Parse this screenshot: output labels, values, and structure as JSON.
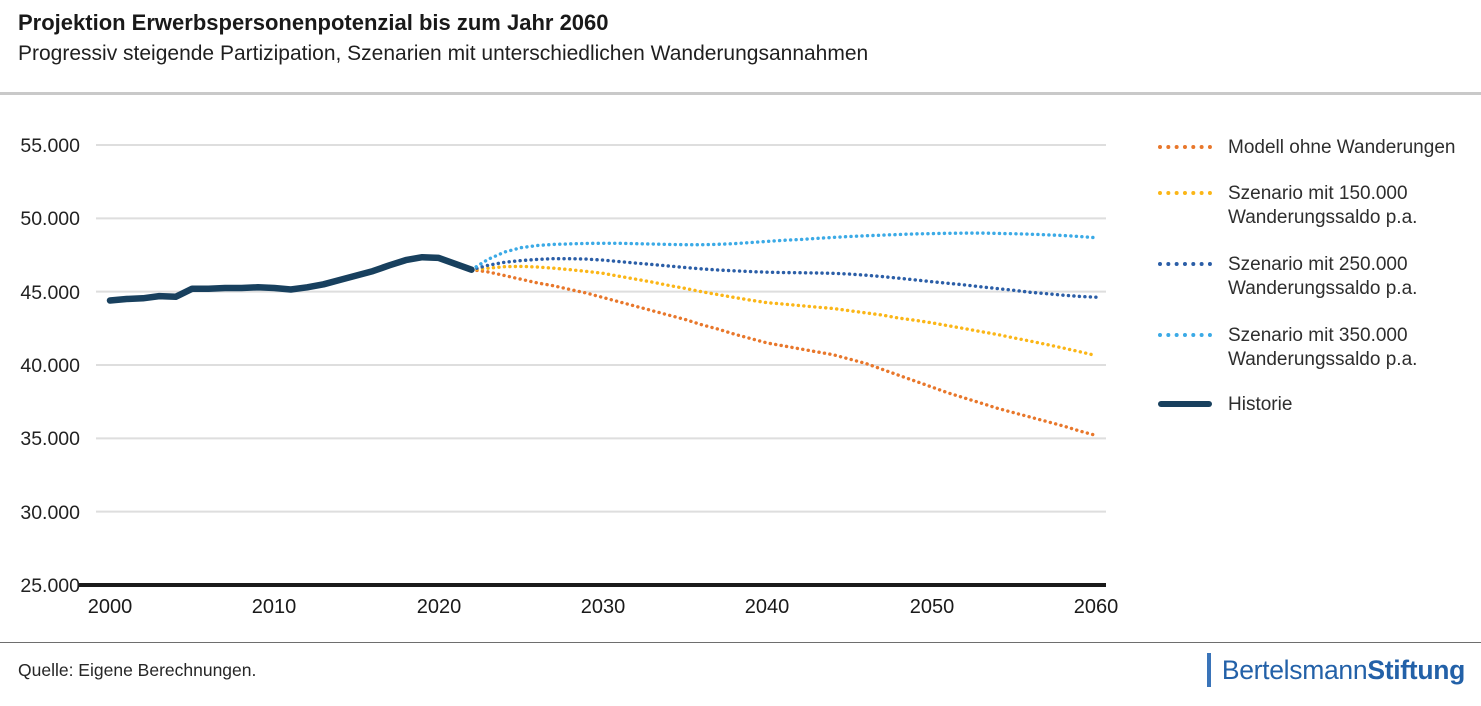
{
  "header": {
    "title": "Projektion Erwerbspersonenpotenzial bis zum Jahr 2060",
    "subtitle": "Progressiv steigende Partizipation, Szenarien mit unterschiedlichen Wanderungsannahmen"
  },
  "footer": {
    "source": "Quelle: Eigene Berechnungen.",
    "logo_part1": "Bertelsmann",
    "logo_part2": "Stiftung",
    "logo_color": "#2361a8"
  },
  "legend": {
    "position": "right",
    "items": [
      {
        "label": "Modell ohne Wanderungen",
        "color": "#E8772B",
        "style": "dotted"
      },
      {
        "label": "Szenario mit 150.000",
        "label2": "Wanderungssaldo p.a.",
        "color": "#FBB617",
        "style": "dotted"
      },
      {
        "label": "Szenario mit 250.000",
        "label2": "Wanderungssaldo p.a.",
        "color": "#2B5EA7",
        "style": "dotted"
      },
      {
        "label": "Szenario mit 350.000",
        "label2": "Wanderungssaldo p.a.",
        "color": "#3BAAE6",
        "style": "dotted"
      },
      {
        "label": "Historie",
        "color": "#18405E",
        "style": "solid"
      }
    ]
  },
  "chart_data": {
    "type": "line",
    "title": "Projektion Erwerbspersonenpotenzial bis zum Jahr 2060",
    "subtitle": "Progressiv steigende Partizipation, Szenarien mit unterschiedlichen Wanderungsannahmen",
    "xlabel": "",
    "ylabel": "",
    "grid": true,
    "legend_position": "right",
    "x_axis": {
      "range": [
        2000,
        2060
      ],
      "tick_labels": [
        "2000",
        "2010",
        "2020",
        "2030",
        "2040",
        "2050",
        "2060"
      ],
      "tick_values": [
        2000,
        2010,
        2020,
        2030,
        2040,
        2050,
        2060
      ]
    },
    "y_axis": {
      "range": [
        25000,
        55000
      ],
      "tick_labels": [
        "55.000",
        "50.000",
        "45.000",
        "40.000",
        "35.000",
        "30.000",
        "25.000"
      ],
      "tick_values": [
        55000,
        50000,
        45000,
        40000,
        35000,
        30000,
        25000
      ]
    },
    "series": [
      {
        "name": "Modell ohne Wanderungen",
        "style": "dotted",
        "color": "#E8772B",
        "start_year": 2022,
        "values": [
          46500,
          46350,
          46100,
          45850,
          45600,
          45400,
          45150,
          44900,
          44600,
          44300,
          44000,
          43700,
          43400,
          43100,
          42750,
          42450,
          42100,
          41800,
          41500,
          41300,
          41100,
          40900,
          40700,
          40400,
          40100,
          39700,
          39300,
          38900,
          38500,
          38100,
          37750,
          37400,
          37050,
          36750,
          36450,
          36150,
          35850,
          35500,
          35200
        ]
      },
      {
        "name": "Szenario mit 150.000 Wanderungssaldo p.a.",
        "style": "dotted",
        "color": "#FBB617",
        "start_year": 2022,
        "values": [
          46500,
          46600,
          46700,
          46720,
          46680,
          46600,
          46500,
          46380,
          46250,
          46050,
          45850,
          45650,
          45430,
          45220,
          45000,
          44800,
          44600,
          44420,
          44250,
          44150,
          44050,
          43950,
          43850,
          43700,
          43550,
          43400,
          43200,
          43050,
          42880,
          42680,
          42480,
          42280,
          42080,
          41850,
          41630,
          41400,
          41160,
          40910,
          40650
        ]
      },
      {
        "name": "Szenario mit 250.000 Wanderungssaldo p.a.",
        "style": "dotted",
        "color": "#2B5EA7",
        "start_year": 2022,
        "values": [
          46500,
          46800,
          47000,
          47120,
          47200,
          47250,
          47250,
          47220,
          47150,
          47050,
          46950,
          46850,
          46750,
          46650,
          46550,
          46480,
          46420,
          46370,
          46330,
          46300,
          46290,
          46270,
          46250,
          46200,
          46120,
          46030,
          45920,
          45800,
          45680,
          45570,
          45460,
          45330,
          45210,
          45090,
          44960,
          44860,
          44760,
          44680,
          44620
        ]
      },
      {
        "name": "Szenario mit 350.000 Wanderungssaldo p.a.",
        "style": "dotted",
        "color": "#3BAAE6",
        "start_year": 2022,
        "values": [
          46500,
          47200,
          47700,
          48000,
          48150,
          48220,
          48260,
          48290,
          48300,
          48300,
          48270,
          48250,
          48220,
          48200,
          48200,
          48230,
          48280,
          48350,
          48430,
          48500,
          48560,
          48630,
          48700,
          48760,
          48810,
          48860,
          48900,
          48940,
          48960,
          48980,
          48990,
          48990,
          48970,
          48950,
          48920,
          48880,
          48830,
          48760,
          48680
        ]
      },
      {
        "name": "Historie",
        "style": "solid",
        "color": "#18405E",
        "start_year": 2000,
        "values": [
          44400,
          44500,
          44550,
          44700,
          44650,
          45200,
          45200,
          45250,
          45250,
          45300,
          45250,
          45150,
          45300,
          45500,
          45800,
          46100,
          46400,
          46800,
          47150,
          47350,
          47300,
          46900,
          46500
        ]
      }
    ]
  }
}
